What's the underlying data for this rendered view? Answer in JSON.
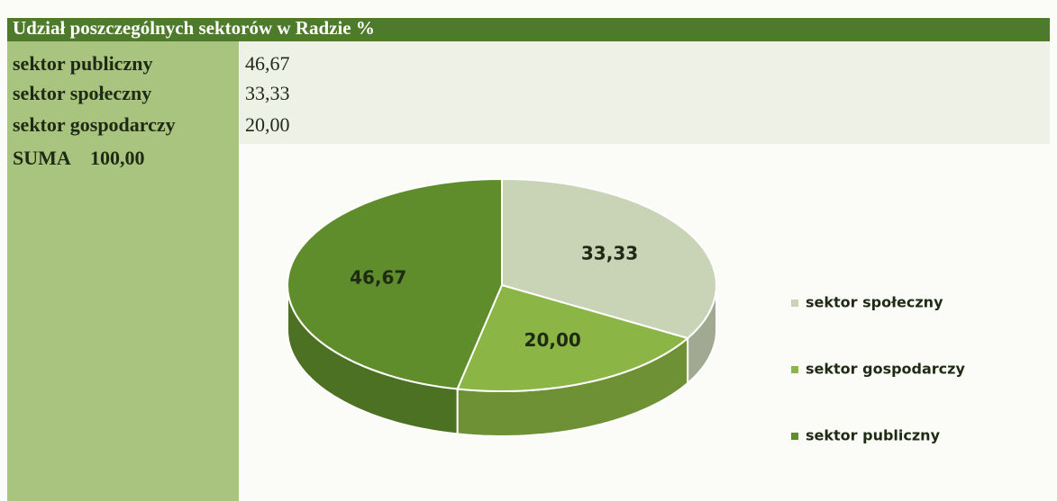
{
  "header": {
    "title": "Udział poszczególnych sektorów w Radzie %"
  },
  "table": {
    "rows": [
      [
        "sektor publiczny",
        "46,67"
      ],
      [
        "sektor społeczny",
        "33,33"
      ],
      [
        "sektor gospodarczy",
        "20,00"
      ]
    ],
    "total": [
      "SUMA",
      "100,00"
    ]
  },
  "chart_data": {
    "type": "pie",
    "categories": [
      "sektor społeczny",
      "sektor gospodarczy",
      "sektor publiczny"
    ],
    "values": [
      33.33,
      20.0,
      46.67
    ],
    "value_labels": [
      "33,33",
      "20,00",
      "46,67"
    ],
    "colors": [
      "#c9d3b6",
      "#8bb544",
      "#5f8d2c"
    ]
  }
}
